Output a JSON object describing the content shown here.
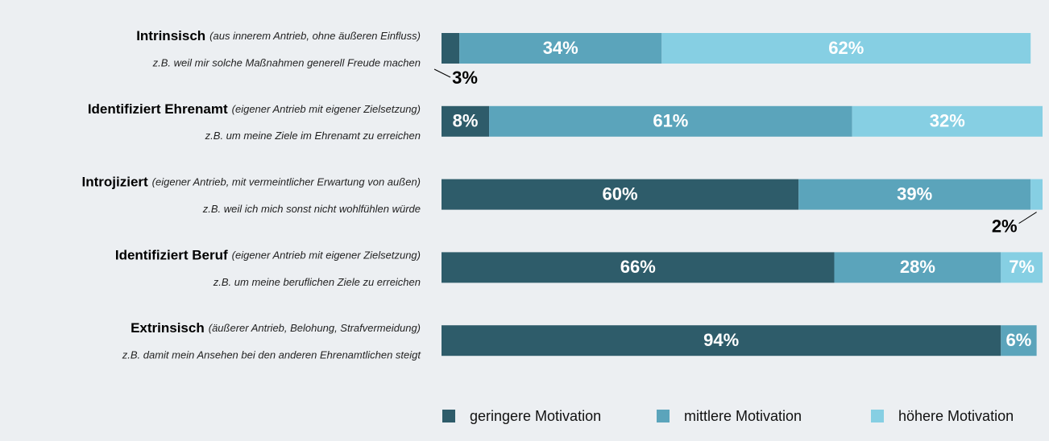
{
  "chart_data": {
    "type": "bar",
    "orientation": "horizontal",
    "stacked": true,
    "categories": [
      "Intrinsisch",
      "Identifiziert Ehrenamt",
      "Introjiziert",
      "Identifiziert Beruf",
      "Extrinsisch"
    ],
    "category_notes": [
      "(aus innerem Antrieb, ohne äußeren Einfluss)",
      "(eigener Antrieb mit eigener Zielsetzung)",
      "(eigener Antrieb, mit vermeintlicher Erwartung von außen)",
      "(eigener Antrieb mit eigener Zielsetzung)",
      "(äußerer Antrieb, Belohung, Strafvermeidung)"
    ],
    "category_examples": [
      "z.B. weil mir solche Maßnahmen generell Freude machen",
      "z.B. um meine Ziele im Ehrenamt zu erreichen",
      "z.B. weil ich mich sonst nicht wohlfühlen würde",
      "z.B. um meine beruflichen Ziele zu erreichen",
      "z.B. damit mein Ansehen bei den anderen Ehrenamtlichen steigt"
    ],
    "series": [
      {
        "name": "geringere Motivation",
        "color": "#2e5c6a",
        "values": [
          3,
          8,
          60,
          66,
          94
        ],
        "value_labels": [
          "3%",
          "8%",
          "60%",
          "66%",
          "94%"
        ]
      },
      {
        "name": "mittlere Motivation",
        "color": "#5ba4bb",
        "values": [
          34,
          61,
          39,
          28,
          6
        ],
        "value_labels": [
          "34%",
          "61%",
          "39%",
          "28%",
          "6%"
        ]
      },
      {
        "name": "höhere Motivation",
        "color": "#86cfe3",
        "values": [
          62,
          32,
          2,
          7,
          null
        ],
        "value_labels": [
          "62%",
          "32%",
          "2%",
          "7%",
          null
        ]
      }
    ],
    "xlim": [
      0,
      101
    ]
  }
}
